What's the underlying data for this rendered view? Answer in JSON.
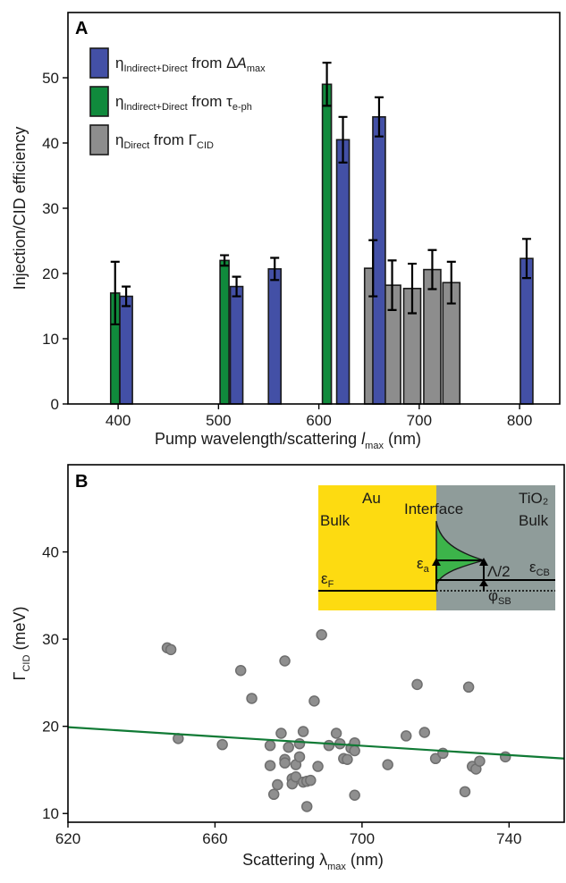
{
  "panel_a": {
    "label": "A",
    "ylabel": "Injection/CID efficiency",
    "xlabel": "Pump wavelength/scattering ",
    "xlabel_var": "l",
    "xlabel_sub": "max",
    "xlabel_unit": " (nm)",
    "legend": [
      {
        "main": "η",
        "sub": "Indirect+Direct",
        "mid": " from Δ",
        "var": "A",
        "sub2": "max"
      },
      {
        "main": "η",
        "sub": "Indirect+Direct",
        "mid": " from τ",
        "var": "",
        "sub2": "e-ph"
      },
      {
        "main": "η",
        "sub": "Direct",
        "mid": " from Γ",
        "var": "",
        "sub2": "CID"
      }
    ]
  },
  "panel_b": {
    "label": "B",
    "ylabel_main": "Γ",
    "ylabel_sub": "CID",
    "ylabel_unit": " (meV)",
    "xlabel_main": "Scattering λ",
    "xlabel_sub": "max",
    "xlabel_unit": " (nm)",
    "inset": {
      "au": "Au",
      "bulk_left": "Bulk",
      "interface": "Interface",
      "tio2": "TiO₂",
      "bulk_right": "Bulk",
      "eps_f": "ε",
      "eps_f_sub": "F",
      "eps_a": "ε",
      "eps_a_sub": "a",
      "lambda_half": "Λ/2",
      "eps_cb": "ε",
      "eps_cb_sub": "CB",
      "phi_sb": "φ",
      "phi_sb_sub": "SB"
    }
  },
  "colors": {
    "blue": "#4350a6",
    "green": "#108a3c",
    "gray": "#8d8d8d",
    "points": "#8f8f8f",
    "fit": "#107a35",
    "gold": "#fddb11",
    "tio2": "#8f9c9a",
    "interface_green": "#3cb44a"
  },
  "chart_data": [
    {
      "type": "bar",
      "xlim": [
        350,
        840
      ],
      "ylim": [
        0,
        60
      ],
      "xticks": [
        400,
        500,
        600,
        700,
        800
      ],
      "yticks": [
        0,
        10,
        20,
        30,
        40,
        50
      ],
      "series": [
        {
          "name": "ηIndirect+Direct from ΔAmax",
          "color": "blue",
          "x": [
            408,
            518,
            556,
            624,
            660,
            807
          ],
          "values": [
            16.5,
            18,
            20.7,
            40.5,
            44,
            22.3
          ],
          "err": [
            1.5,
            1.5,
            1.7,
            3.5,
            3,
            3
          ]
        },
        {
          "name": "ηIndirect+Direct from τe-ph",
          "color": "green",
          "x": [
            397,
            506,
            608
          ],
          "values": [
            17,
            22,
            49
          ],
          "err": [
            4.8,
            0.8,
            3.3
          ]
        },
        {
          "name": "ηDirect from ΓCID",
          "color": "gray",
          "x": [
            654,
            673,
            693,
            713,
            732
          ],
          "values": [
            20.8,
            18.2,
            17.7,
            20.6,
            18.6
          ],
          "err": [
            4.3,
            3.8,
            3.8,
            3.0,
            3.2
          ]
        }
      ]
    },
    {
      "type": "scatter",
      "xlim": [
        620,
        755
      ],
      "ylim": [
        9,
        50
      ],
      "xticks": [
        620,
        660,
        700,
        740
      ],
      "yticks": [
        10,
        20,
        30,
        40
      ],
      "points": [
        [
          647,
          29
        ],
        [
          648,
          28.8
        ],
        [
          650,
          18.6
        ],
        [
          662,
          17.9
        ],
        [
          667,
          26.4
        ],
        [
          670,
          23.2
        ],
        [
          675,
          17.8
        ],
        [
          675,
          15.5
        ],
        [
          676,
          12.2
        ],
        [
          677,
          13.3
        ],
        [
          678,
          19.2
        ],
        [
          679,
          16.2
        ],
        [
          679,
          27.5
        ],
        [
          679,
          15.8
        ],
        [
          680,
          17.6
        ],
        [
          681,
          14.0
        ],
        [
          681,
          13.4
        ],
        [
          682,
          15.6
        ],
        [
          682,
          14.2
        ],
        [
          683,
          16.5
        ],
        [
          683,
          18.0
        ],
        [
          684,
          13.6
        ],
        [
          685,
          13.7
        ],
        [
          684,
          19.4
        ],
        [
          685,
          10.8
        ],
        [
          686,
          13.8
        ],
        [
          687,
          22.9
        ],
        [
          688,
          15.4
        ],
        [
          689,
          30.5
        ],
        [
          691,
          17.8
        ],
        [
          693,
          19.2
        ],
        [
          694,
          18.0
        ],
        [
          695,
          16.3
        ],
        [
          696,
          16.2
        ],
        [
          697,
          17.5
        ],
        [
          698,
          18.1
        ],
        [
          698,
          17.2
        ],
        [
          698,
          12.1
        ],
        [
          707,
          15.6
        ],
        [
          712,
          18.9
        ],
        [
          715,
          24.8
        ],
        [
          717,
          19.3
        ],
        [
          720,
          16.3
        ],
        [
          722,
          16.9
        ],
        [
          728,
          12.5
        ],
        [
          729,
          24.5
        ],
        [
          730,
          15.4
        ],
        [
          731,
          15.1
        ],
        [
          732,
          16.0
        ],
        [
          739,
          16.5
        ]
      ],
      "fit": {
        "x": [
          620,
          755
        ],
        "y": [
          19.9,
          16.3
        ]
      }
    }
  ]
}
